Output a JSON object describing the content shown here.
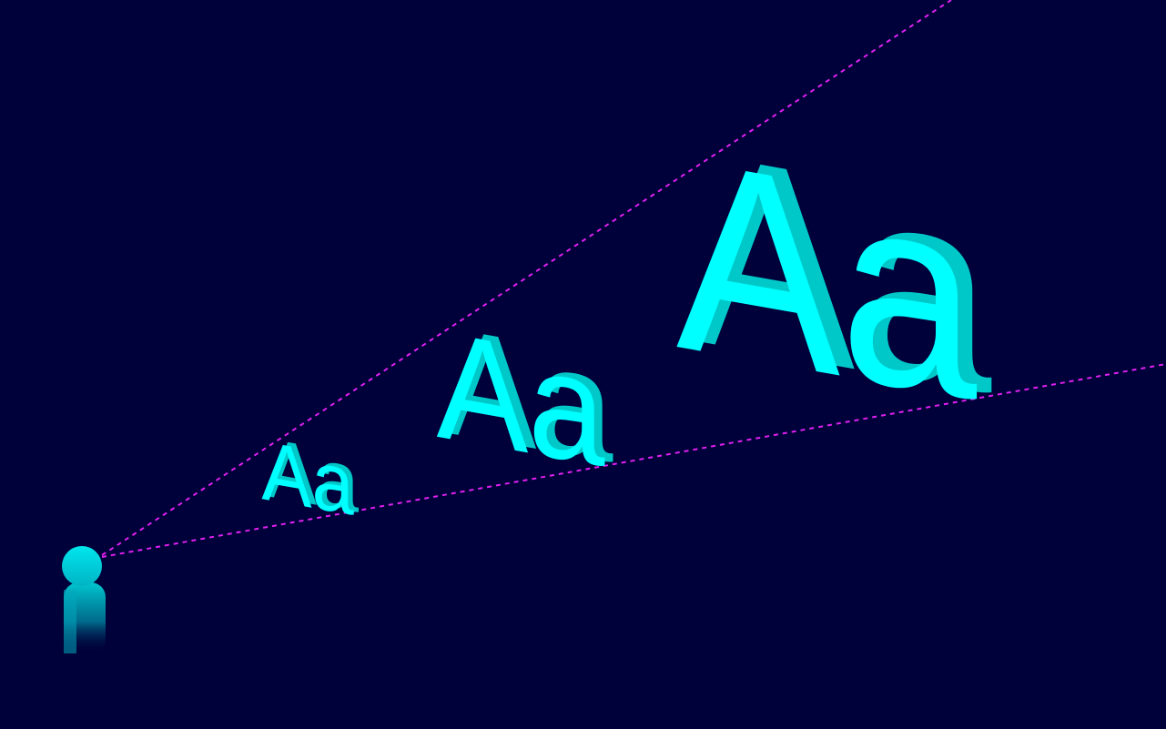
{
  "scene": {
    "background_color": "#00003a",
    "letter_front_color": "#00ffff",
    "letter_side_color": "#00c8c8",
    "sightline_color": "#e020f0",
    "figure_color": "#00d0d8"
  },
  "samples": [
    {
      "text": "Aa"
    },
    {
      "text": "Aa"
    },
    {
      "text": "Aa"
    }
  ]
}
